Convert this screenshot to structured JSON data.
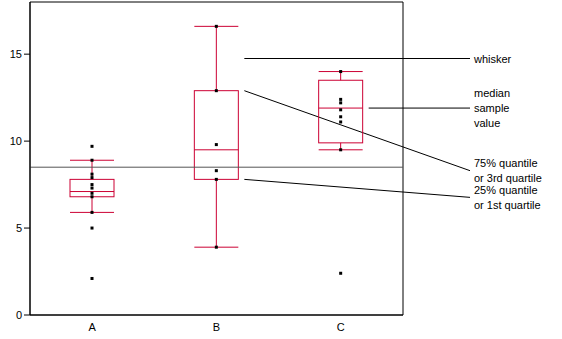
{
  "chart_data": {
    "type": "box",
    "categories": [
      "A",
      "B",
      "C"
    ],
    "whisker_low": [
      5.9,
      3.9,
      9.5
    ],
    "q1": [
      6.8,
      7.8,
      9.9
    ],
    "median": [
      7.1,
      9.5,
      11.9
    ],
    "q3": [
      7.8,
      12.9,
      13.5
    ],
    "whisker_high": [
      8.9,
      16.6,
      14.0
    ],
    "points": [
      [
        2.1,
        5.0,
        5.9,
        6.8,
        7.0,
        7.3,
        7.5,
        7.9,
        8.1,
        8.9,
        9.7
      ],
      [
        3.9,
        7.8,
        8.3,
        9.8,
        12.9,
        16.6
      ],
      [
        2.4,
        9.5,
        11.1,
        11.4,
        11.8,
        12.2,
        12.4,
        14.0
      ]
    ],
    "reference_line": 8.5,
    "ylim": [
      0,
      18
    ],
    "yticks": [
      0,
      5,
      10,
      15
    ],
    "color": "#cc0033",
    "annotations": [
      [
        "whisker"
      ],
      [
        "median",
        "sample",
        "value"
      ],
      [
        "75% quantile",
        "or 3rd quartile"
      ],
      [
        "25% quantile",
        "or 1st quartile"
      ]
    ]
  }
}
